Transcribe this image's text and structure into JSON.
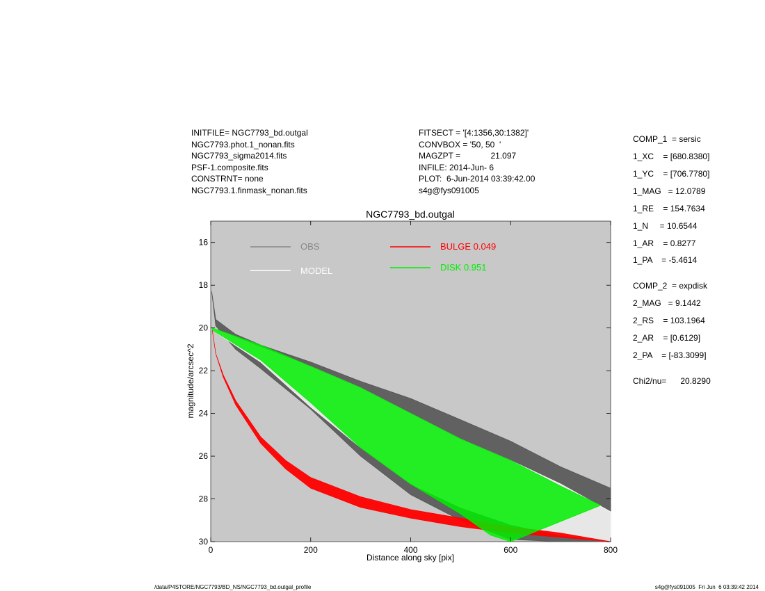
{
  "header": {
    "left": [
      "INITFILE= NGC7793_bd.outgal",
      "NGC7793.phot.1_nonan.fits",
      "NGC7793_sigma2014.fits",
      "PSF-1.composite.fits",
      "CONSTRNT= none",
      "NGC7793.1.finmask_nonan.fits"
    ],
    "middle": [
      "FITSECT = '[4:1356,30:1382]'",
      "CONVBOX = '50, 50  '",
      "MAGZPT =             21.097",
      "INFILE: 2014-Jun- 6",
      "PLOT:  6-Jun-2014 03:39:42.00",
      "s4g@fys091005"
    ]
  },
  "params": [
    "COMP_1  = sersic",
    "1_XC    = [680.8380]",
    "1_YC    = [706.7780]",
    "1_MAG   = 12.0789",
    "1_RE    = 154.7634",
    "1_N     = 10.6544",
    "1_AR    = 0.8277",
    "1_PA    = -5.4614",
    "COMP_2  = expdisk",
    "2_MAG   = 9.1442",
    "2_RS    = 103.1964",
    "2_AR    = [0.6129]",
    "2_PA    = [-83.3099]",
    "Chi2/nu=      20.8290"
  ],
  "footer": {
    "left": "/data/P4STORE/NGC7793/BD_NS/NGC7793_bd.outgal_profile",
    "right": "s4g@fys091005  Fri Jun  6 03:39:42 2014"
  },
  "colors": {
    "plot_bg": "#c8c8c8",
    "obs": "#555555",
    "model": "#ffffff",
    "bulge": "#ff0000",
    "disk": "#00ee00"
  },
  "chart_data": {
    "type": "scatter",
    "title": "NGC7793_bd.outgal",
    "xlabel": "Distance along sky [pix]",
    "ylabel": "magnitude/arcsec^2",
    "xlim": [
      0,
      800
    ],
    "ylim": [
      30,
      15
    ],
    "y_inverted": true,
    "xticks": [
      0,
      200,
      400,
      600,
      800
    ],
    "yticks": [
      16,
      18,
      20,
      22,
      24,
      26,
      28,
      30
    ],
    "grid": false,
    "legend": [
      {
        "label": "OBS",
        "color": "#888888"
      },
      {
        "label": "MODEL",
        "color": "#ffffff"
      },
      {
        "label": "BULGE  0.049",
        "color": "#ff0000"
      },
      {
        "label": "DISK  0.951",
        "color": "#00ee00"
      }
    ],
    "series": [
      {
        "name": "OBS",
        "type": "scatter-band",
        "upper": [
          [
            2,
            18.3
          ],
          [
            10,
            19.6
          ],
          [
            50,
            20.3
          ],
          [
            100,
            20.8
          ],
          [
            200,
            21.6
          ],
          [
            300,
            22.5
          ],
          [
            400,
            23.3
          ],
          [
            500,
            24.3
          ],
          [
            600,
            25.3
          ],
          [
            700,
            26.5
          ],
          [
            800,
            27.5
          ]
        ],
        "lower": [
          [
            2,
            18.3
          ],
          [
            10,
            19.9
          ],
          [
            50,
            21.0
          ],
          [
            100,
            21.9
          ],
          [
            200,
            23.8
          ],
          [
            300,
            26.0
          ],
          [
            400,
            27.8
          ],
          [
            500,
            29.0
          ],
          [
            600,
            29.9
          ],
          [
            700,
            30
          ],
          [
            800,
            30
          ]
        ]
      },
      {
        "name": "MODEL",
        "type": "scatter-band",
        "upper": [
          [
            3,
            20.0
          ],
          [
            100,
            20.9
          ],
          [
            200,
            21.8
          ],
          [
            300,
            22.8
          ],
          [
            400,
            24.0
          ],
          [
            500,
            25.2
          ],
          [
            600,
            26.2
          ],
          [
            700,
            27.3
          ],
          [
            800,
            28.6
          ]
        ],
        "lower": [
          [
            3,
            20.1
          ],
          [
            100,
            21.6
          ],
          [
            200,
            23.7
          ],
          [
            300,
            25.6
          ],
          [
            400,
            27.3
          ],
          [
            500,
            28.4
          ],
          [
            600,
            29.2
          ],
          [
            700,
            29.7
          ],
          [
            800,
            30.0
          ]
        ]
      },
      {
        "name": "BULGE  0.049",
        "type": "scatter-band",
        "upper": [
          [
            3,
            20.1
          ],
          [
            10,
            21.2
          ],
          [
            25,
            22.2
          ],
          [
            50,
            23.4
          ],
          [
            100,
            25.1
          ],
          [
            150,
            26.2
          ],
          [
            200,
            27.0
          ],
          [
            300,
            27.9
          ],
          [
            400,
            28.5
          ],
          [
            500,
            28.9
          ],
          [
            600,
            29.3
          ],
          [
            700,
            29.6
          ],
          [
            800,
            30.0
          ]
        ],
        "lower": [
          [
            3,
            20.1
          ],
          [
            10,
            21.2
          ],
          [
            25,
            22.3
          ],
          [
            50,
            23.6
          ],
          [
            100,
            25.4
          ],
          [
            150,
            26.6
          ],
          [
            200,
            27.5
          ],
          [
            300,
            28.4
          ],
          [
            400,
            28.9
          ],
          [
            500,
            29.3
          ],
          [
            600,
            29.6
          ],
          [
            700,
            29.8
          ],
          [
            800,
            30.0
          ]
        ]
      },
      {
        "name": "DISK  0.951",
        "type": "scatter-band",
        "upper": [
          [
            3,
            20.0
          ],
          [
            100,
            20.8
          ],
          [
            200,
            21.8
          ],
          [
            300,
            22.8
          ],
          [
            400,
            24.0
          ],
          [
            500,
            25.2
          ],
          [
            600,
            26.2
          ],
          [
            700,
            27.4
          ],
          [
            780,
            28.3
          ]
        ],
        "lower": [
          [
            3,
            20.1
          ],
          [
            100,
            21.5
          ],
          [
            200,
            23.5
          ],
          [
            300,
            25.6
          ],
          [
            400,
            27.3
          ],
          [
            500,
            28.7
          ],
          [
            560,
            29.7
          ],
          [
            600,
            30.0
          ]
        ]
      }
    ]
  }
}
